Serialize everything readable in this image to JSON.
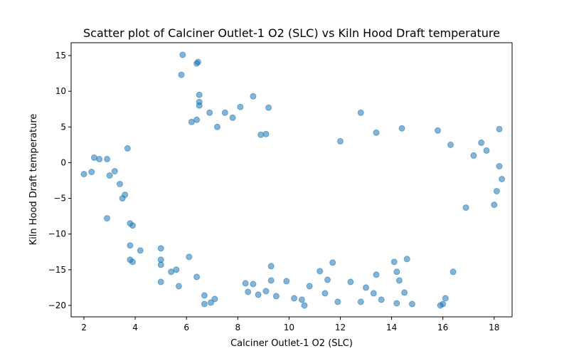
{
  "chart_data": {
    "type": "scatter",
    "title": "Scatter plot of Calciner Outlet-1 O2 (SLC) vs Kiln Hood Draft temperature",
    "xlabel": "Calciner Outlet-1 O2 (SLC)",
    "ylabel": "Kiln Hood Draft temperature",
    "xlim": [
      1.5,
      18.7
    ],
    "ylim": [
      -21.6,
      16.8
    ],
    "xticks": [
      2,
      4,
      6,
      8,
      10,
      12,
      14,
      16,
      18
    ],
    "yticks": [
      -20,
      -15,
      -10,
      -5,
      0,
      5,
      10,
      15
    ],
    "grid": false,
    "marker_color": "#1f77b4",
    "marker_alpha": 0.55,
    "series": [
      {
        "points": [
          [
            2.0,
            -1.6
          ],
          [
            2.3,
            -1.3
          ],
          [
            2.4,
            0.7
          ],
          [
            2.6,
            0.5
          ],
          [
            2.9,
            0.5
          ],
          [
            2.9,
            -7.8
          ],
          [
            3.0,
            -1.8
          ],
          [
            3.2,
            -1.2
          ],
          [
            3.4,
            -3.0
          ],
          [
            3.5,
            -5.0
          ],
          [
            3.6,
            -4.5
          ],
          [
            3.7,
            2.0
          ],
          [
            3.8,
            -8.5
          ],
          [
            3.8,
            -11.6
          ],
          [
            3.8,
            -13.6
          ],
          [
            3.9,
            -13.9
          ],
          [
            3.9,
            -8.8
          ],
          [
            4.2,
            -12.3
          ],
          [
            5.0,
            -12.0
          ],
          [
            5.0,
            -13.6
          ],
          [
            5.0,
            -14.3
          ],
          [
            5.0,
            -16.7
          ],
          [
            5.4,
            -15.3
          ],
          [
            5.6,
            -15.0
          ],
          [
            5.7,
            -17.3
          ],
          [
            5.8,
            12.3
          ],
          [
            5.85,
            15.1
          ],
          [
            6.1,
            -13.2
          ],
          [
            6.4,
            13.9
          ],
          [
            6.45,
            14.1
          ],
          [
            6.5,
            9.5
          ],
          [
            6.5,
            8.5
          ],
          [
            6.5,
            8.0
          ],
          [
            6.4,
            6.0
          ],
          [
            6.2,
            5.7
          ],
          [
            6.7,
            -19.8
          ],
          [
            6.7,
            -18.6
          ],
          [
            6.4,
            -16.0
          ],
          [
            6.9,
            7.0
          ],
          [
            6.95,
            -19.6
          ],
          [
            7.1,
            -19.1
          ],
          [
            7.2,
            5.0
          ],
          [
            7.5,
            7.0
          ],
          [
            7.8,
            6.3
          ],
          [
            8.1,
            7.8
          ],
          [
            8.6,
            9.3
          ],
          [
            9.2,
            7.7
          ],
          [
            9.1,
            4.0
          ],
          [
            8.9,
            3.9
          ],
          [
            8.3,
            -16.9
          ],
          [
            8.6,
            -17.0
          ],
          [
            8.4,
            -18.1
          ],
          [
            8.8,
            -18.5
          ],
          [
            9.1,
            -18.0
          ],
          [
            9.3,
            -16.5
          ],
          [
            9.5,
            -18.7
          ],
          [
            9.9,
            -16.6
          ],
          [
            9.3,
            -14.5
          ],
          [
            10.2,
            -19.0
          ],
          [
            10.5,
            -19.2
          ],
          [
            10.6,
            -20.0
          ],
          [
            10.8,
            -17.3
          ],
          [
            11.2,
            -15.2
          ],
          [
            11.5,
            -16.4
          ],
          [
            11.7,
            -14.0
          ],
          [
            11.4,
            -18.3
          ],
          [
            11.9,
            -19.5
          ],
          [
            12.4,
            -16.7
          ],
          [
            12.8,
            -19.5
          ],
          [
            13.0,
            -17.5
          ],
          [
            13.3,
            -18.3
          ],
          [
            13.4,
            -15.7
          ],
          [
            13.6,
            -19.2
          ],
          [
            12.8,
            7.0
          ],
          [
            13.4,
            4.2
          ],
          [
            14.1,
            -13.9
          ],
          [
            14.2,
            -15.3
          ],
          [
            14.3,
            -16.5
          ],
          [
            14.2,
            -19.7
          ],
          [
            14.8,
            -19.8
          ],
          [
            14.5,
            -18.2
          ],
          [
            14.4,
            4.8
          ],
          [
            14.6,
            -13.5
          ],
          [
            16.4,
            -15.3
          ],
          [
            16.0,
            -19.8
          ],
          [
            15.9,
            -20.0
          ],
          [
            16.1,
            -19.0
          ],
          [
            15.8,
            4.5
          ],
          [
            16.3,
            2.5
          ],
          [
            16.9,
            -6.3
          ],
          [
            17.2,
            1.0
          ],
          [
            17.5,
            2.8
          ],
          [
            17.7,
            1.7
          ],
          [
            18.2,
            4.7
          ],
          [
            18.2,
            -0.5
          ],
          [
            18.3,
            -2.3
          ],
          [
            18.1,
            -4.0
          ],
          [
            18.0,
            -5.9
          ],
          [
            12.0,
            3.0
          ]
        ]
      }
    ]
  }
}
